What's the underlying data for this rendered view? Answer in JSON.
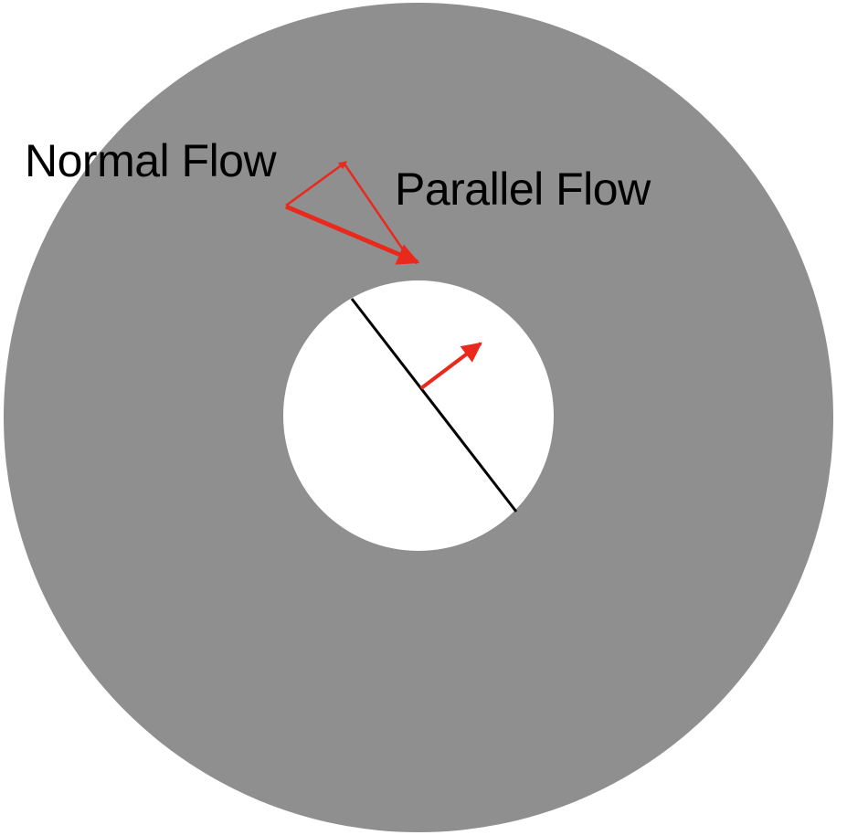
{
  "labels": {
    "normal_flow": "Normal Flow",
    "parallel_flow": "Parallel Flow"
  },
  "colors": {
    "background": "#ffffff",
    "annulus": "#8f8f8f",
    "arrow": "#e8291c",
    "cut_line": "#000000",
    "text": "#000000"
  }
}
